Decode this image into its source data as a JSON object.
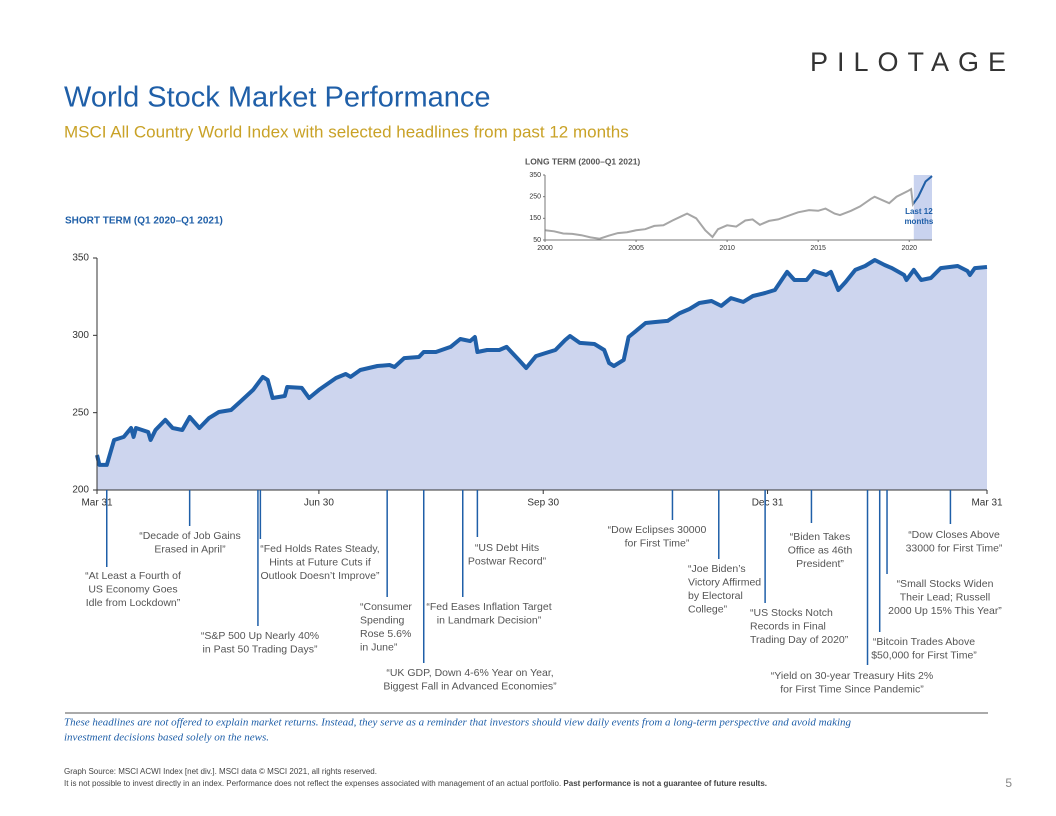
{
  "logo": "PILOTAGE",
  "title": "World Stock Market Performance",
  "subtitle": "MSCI All Country World Index with selected headlines from past 12 months",
  "chart_data": [
    {
      "type": "area",
      "title": "SHORT TERM (Q1 2020–Q1 2021)",
      "color": "#1f5fa8",
      "fill": "#cdd5ee",
      "x": [
        0,
        1,
        4,
        7,
        11,
        14,
        15,
        16,
        21,
        22,
        24,
        28,
        31,
        35,
        38,
        42,
        46,
        50,
        55,
        59,
        64,
        68,
        70,
        72,
        77,
        78,
        84,
        87,
        91,
        98,
        102,
        104,
        108,
        115,
        120,
        122,
        126,
        132,
        134,
        139,
        145,
        149,
        153,
        155,
        156,
        160,
        165,
        168,
        173,
        176,
        180,
        184,
        188,
        192,
        194,
        198,
        204,
        208,
        210,
        212,
        216,
        218,
        225,
        229,
        234,
        239,
        243,
        247,
        252,
        256,
        260,
        265,
        269,
        274,
        278,
        283,
        286,
        291,
        294,
        299,
        301,
        304,
        307,
        311,
        315,
        319,
        323,
        326,
        331,
        332,
        335,
        338,
        342,
        346,
        353,
        357,
        358,
        360,
        365
      ],
      "values": [
        222.6,
        216.2,
        216.2,
        232.3,
        234.3,
        240.1,
        234.3,
        240.1,
        237.5,
        232.3,
        238.8,
        245.3,
        240.1,
        238.8,
        247.2,
        240.1,
        246.6,
        250.4,
        251.7,
        257.5,
        264.7,
        273.1,
        271.1,
        259.5,
        260.8,
        266.6,
        266.0,
        259.5,
        264.7,
        272.4,
        275.0,
        273.1,
        277.6,
        280.2,
        280.8,
        279.5,
        285.3,
        286.0,
        289.2,
        289.2,
        292.5,
        297.6,
        296.3,
        298.9,
        289.2,
        290.5,
        290.5,
        292.5,
        284.1,
        278.9,
        286.6,
        288.6,
        290.5,
        297.0,
        299.6,
        295.1,
        294.4,
        290.5,
        282.1,
        280.2,
        284.1,
        298.9,
        308.0,
        308.6,
        309.3,
        314.4,
        317.0,
        320.9,
        322.2,
        319.0,
        324.1,
        321.6,
        325.4,
        327.4,
        329.3,
        341.0,
        335.8,
        335.8,
        341.6,
        339.0,
        341.0,
        329.3,
        334.5,
        342.3,
        344.8,
        348.7,
        345.5,
        343.5,
        339.0,
        335.8,
        342.3,
        335.8,
        337.1,
        343.5,
        344.8,
        341.6,
        339.0,
        343.5,
        344.2
      ],
      "xlim": [
        0,
        365
      ],
      "xticks": [
        {
          "value": 0,
          "label": "Mar 31"
        },
        {
          "value": 91,
          "label": "Jun 30"
        },
        {
          "value": 183,
          "label": "Sep 30"
        },
        {
          "value": 275,
          "label": "Dec 31"
        },
        {
          "value": 365,
          "label": "Mar 31"
        }
      ],
      "ylim": [
        200,
        350
      ],
      "yticks": [
        200,
        250,
        300,
        350
      ],
      "annotations": [
        {
          "x": 4,
          "lines": [
            "“At Least a Fourth of",
            "US Economy Goes",
            "Idle from Lockdown”"
          ]
        },
        {
          "x": 38,
          "lines": [
            "“Decade of Job Gains",
            "Erased in April”"
          ]
        },
        {
          "x": 66,
          "lines": [
            "“S&P 500 Up Nearly 40%",
            "in Past 50 Trading Days”"
          ]
        },
        {
          "x": 67,
          "lines": [
            "“Fed Holds Rates Steady,",
            "Hints at Future Cuts if",
            "Outlook Doesn’t Improve”"
          ]
        },
        {
          "x": 119,
          "lines": [
            "“Consumer",
            "Spending",
            "Rose 5.6%",
            "in June”"
          ]
        },
        {
          "x": 134,
          "lines": [
            "“UK GDP, Down 4-6% Year on Year,",
            "Biggest Fall in Advanced Economies”"
          ]
        },
        {
          "x": 150,
          "lines": [
            "“Fed Eases Inflation Target",
            "in Landmark Decision”"
          ]
        },
        {
          "x": 156,
          "lines": [
            "“US Debt Hits",
            "Postwar Record”"
          ]
        },
        {
          "x": 236,
          "lines": [
            "“Dow Eclipses 30000",
            "for First Time”"
          ]
        },
        {
          "x": 255,
          "lines": [
            "“Joe Biden’s",
            "Victory Affirmed",
            "by Electoral",
            "College”"
          ]
        },
        {
          "x": 274,
          "lines": [
            "“US Stocks Notch",
            "Records in Final",
            "Trading Day of 2020”"
          ]
        },
        {
          "x": 293,
          "lines": [
            "“Biden Takes",
            "Office as 46th",
            "President”"
          ]
        },
        {
          "x": 316,
          "lines": [
            "“Yield on 30-year Treasury Hits 2%",
            "for First Time Since Pandemic”"
          ]
        },
        {
          "x": 321,
          "lines": [
            "“Bitcoin Trades Above",
            "$50,000 for First Time”"
          ]
        },
        {
          "x": 324,
          "lines": [
            "“Small Stocks Widen",
            "Their Lead; Russell",
            "2000 Up 15% This Year”"
          ]
        },
        {
          "x": 350,
          "lines": [
            "“Dow Closes Above",
            "33000 for First Time”"
          ]
        }
      ]
    },
    {
      "type": "line",
      "title": "LONG TERM (2000–Q1 2021)",
      "color": "#a6a6a6",
      "x": [
        2000,
        2000.5,
        2001,
        2001.5,
        2002,
        2002.5,
        2003,
        2003.5,
        2004,
        2004.5,
        2005,
        2005.5,
        2006,
        2006.5,
        2007,
        2007.5,
        2007.8,
        2008.3,
        2008.8,
        2009.2,
        2009.5,
        2010,
        2010.5,
        2011,
        2011.4,
        2011.8,
        2012.3,
        2012.8,
        2013.3,
        2013.9,
        2014.5,
        2015,
        2015.4,
        2015.9,
        2016.2,
        2016.8,
        2017.3,
        2017.9,
        2018.1,
        2018.9,
        2019.3,
        2019.9,
        2020.1,
        2020.2,
        2020.5,
        2020.9,
        2021.25
      ],
      "values": [
        95,
        90,
        80,
        78,
        72,
        62,
        56,
        70,
        82,
        86,
        95,
        100,
        115,
        118,
        140,
        160,
        172,
        150,
        95,
        64,
        100,
        118,
        112,
        140,
        145,
        120,
        138,
        145,
        160,
        178,
        188,
        185,
        195,
        172,
        165,
        185,
        205,
        240,
        250,
        220,
        250,
        275,
        285,
        215,
        250,
        320,
        345
      ],
      "xlim": [
        2000,
        2021.25
      ],
      "xticks": [
        2000,
        2005,
        2010,
        2015,
        2020
      ],
      "ylim": [
        50,
        350
      ],
      "yticks": [
        50,
        150,
        250,
        350
      ],
      "highlight": {
        "range": [
          2020.25,
          2021.25
        ],
        "color": "#1f5fa8",
        "label": [
          "Last 12",
          "months"
        ]
      }
    }
  ],
  "disclaimer": [
    "These headlines are not offered to explain market returns. Instead, they serve as a reminder that investors should view daily events from a long-term perspective and avoid making",
    "investment decisions based solely on the news."
  ],
  "footnotes": [
    "Graph Source: MSCI ACWI Index [net div.]. MSCI data © MSCI 2021, all rights reserved.",
    "It is not possible to invest directly in an index. Performance does not reflect the expenses associated with management of an actual portfolio."
  ],
  "footnote_bold": "Past performance is not a guarantee of future results.",
  "page_number": "5"
}
